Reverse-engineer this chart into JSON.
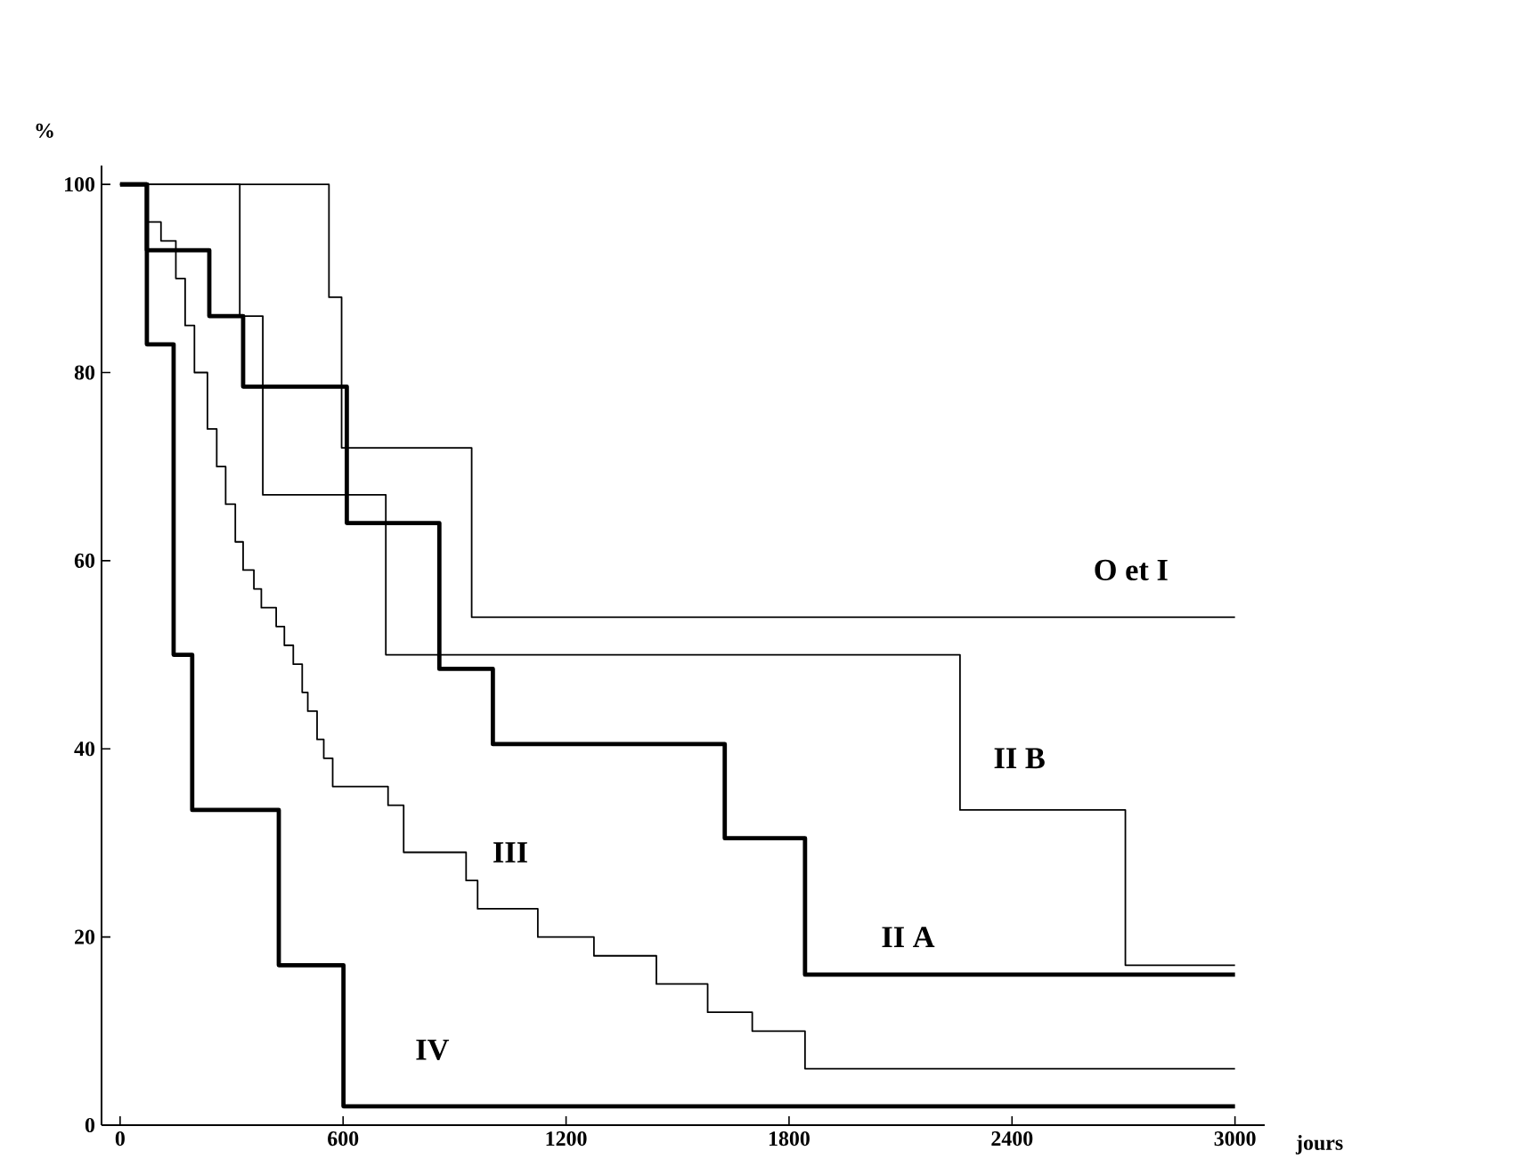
{
  "chart_data": {
    "type": "step",
    "xlabel": "jours",
    "ylabel": "%",
    "xlim": [
      -50,
      3080
    ],
    "ylim": [
      0,
      102
    ],
    "xticks": [
      0,
      600,
      1200,
      1800,
      2400,
      3000
    ],
    "yticks": [
      0,
      20,
      40,
      60,
      80,
      100
    ],
    "series": [
      {
        "name": "O et I",
        "color": "#000000",
        "x": [
          0,
          562,
          596,
          946,
          3000
        ],
        "values": [
          100,
          88,
          72,
          54,
          54
        ]
      },
      {
        "name": "II B",
        "color": "#000000",
        "x": [
          0,
          322,
          384,
          715,
          2260,
          2705,
          3000
        ],
        "values": [
          100,
          86,
          67,
          50,
          33.5,
          17,
          17
        ]
      },
      {
        "name": "II A",
        "color": "#000000",
        "x": [
          0,
          72,
          240,
          331,
          610,
          859,
          1003,
          1627,
          1843,
          3000
        ],
        "values": [
          100,
          93,
          86,
          78.5,
          64,
          48.5,
          40.5,
          30.5,
          16,
          16
        ]
      },
      {
        "name": "III",
        "color": "#000000",
        "x": [
          0,
          72,
          110,
          150,
          175,
          200,
          235,
          260,
          284,
          310,
          331,
          360,
          380,
          420,
          442,
          466,
          490,
          505,
          530,
          548,
          572,
          721,
          763,
          931,
          962,
          1124,
          1275,
          1443,
          1581,
          1701,
          1843,
          3000
        ],
        "values": [
          100,
          96,
          94,
          90,
          85,
          80,
          74,
          70,
          66,
          62,
          59,
          57,
          55,
          53,
          51,
          49,
          46,
          44,
          41,
          39,
          36,
          34,
          29,
          26,
          23,
          20,
          18,
          15,
          12,
          10,
          6,
          6
        ]
      },
      {
        "name": "IV",
        "color": "#000000",
        "x": [
          0,
          72,
          144,
          194,
          427,
          601,
          3000
        ],
        "values": [
          100,
          83,
          50,
          33.5,
          17,
          2,
          2
        ]
      }
    ]
  }
}
